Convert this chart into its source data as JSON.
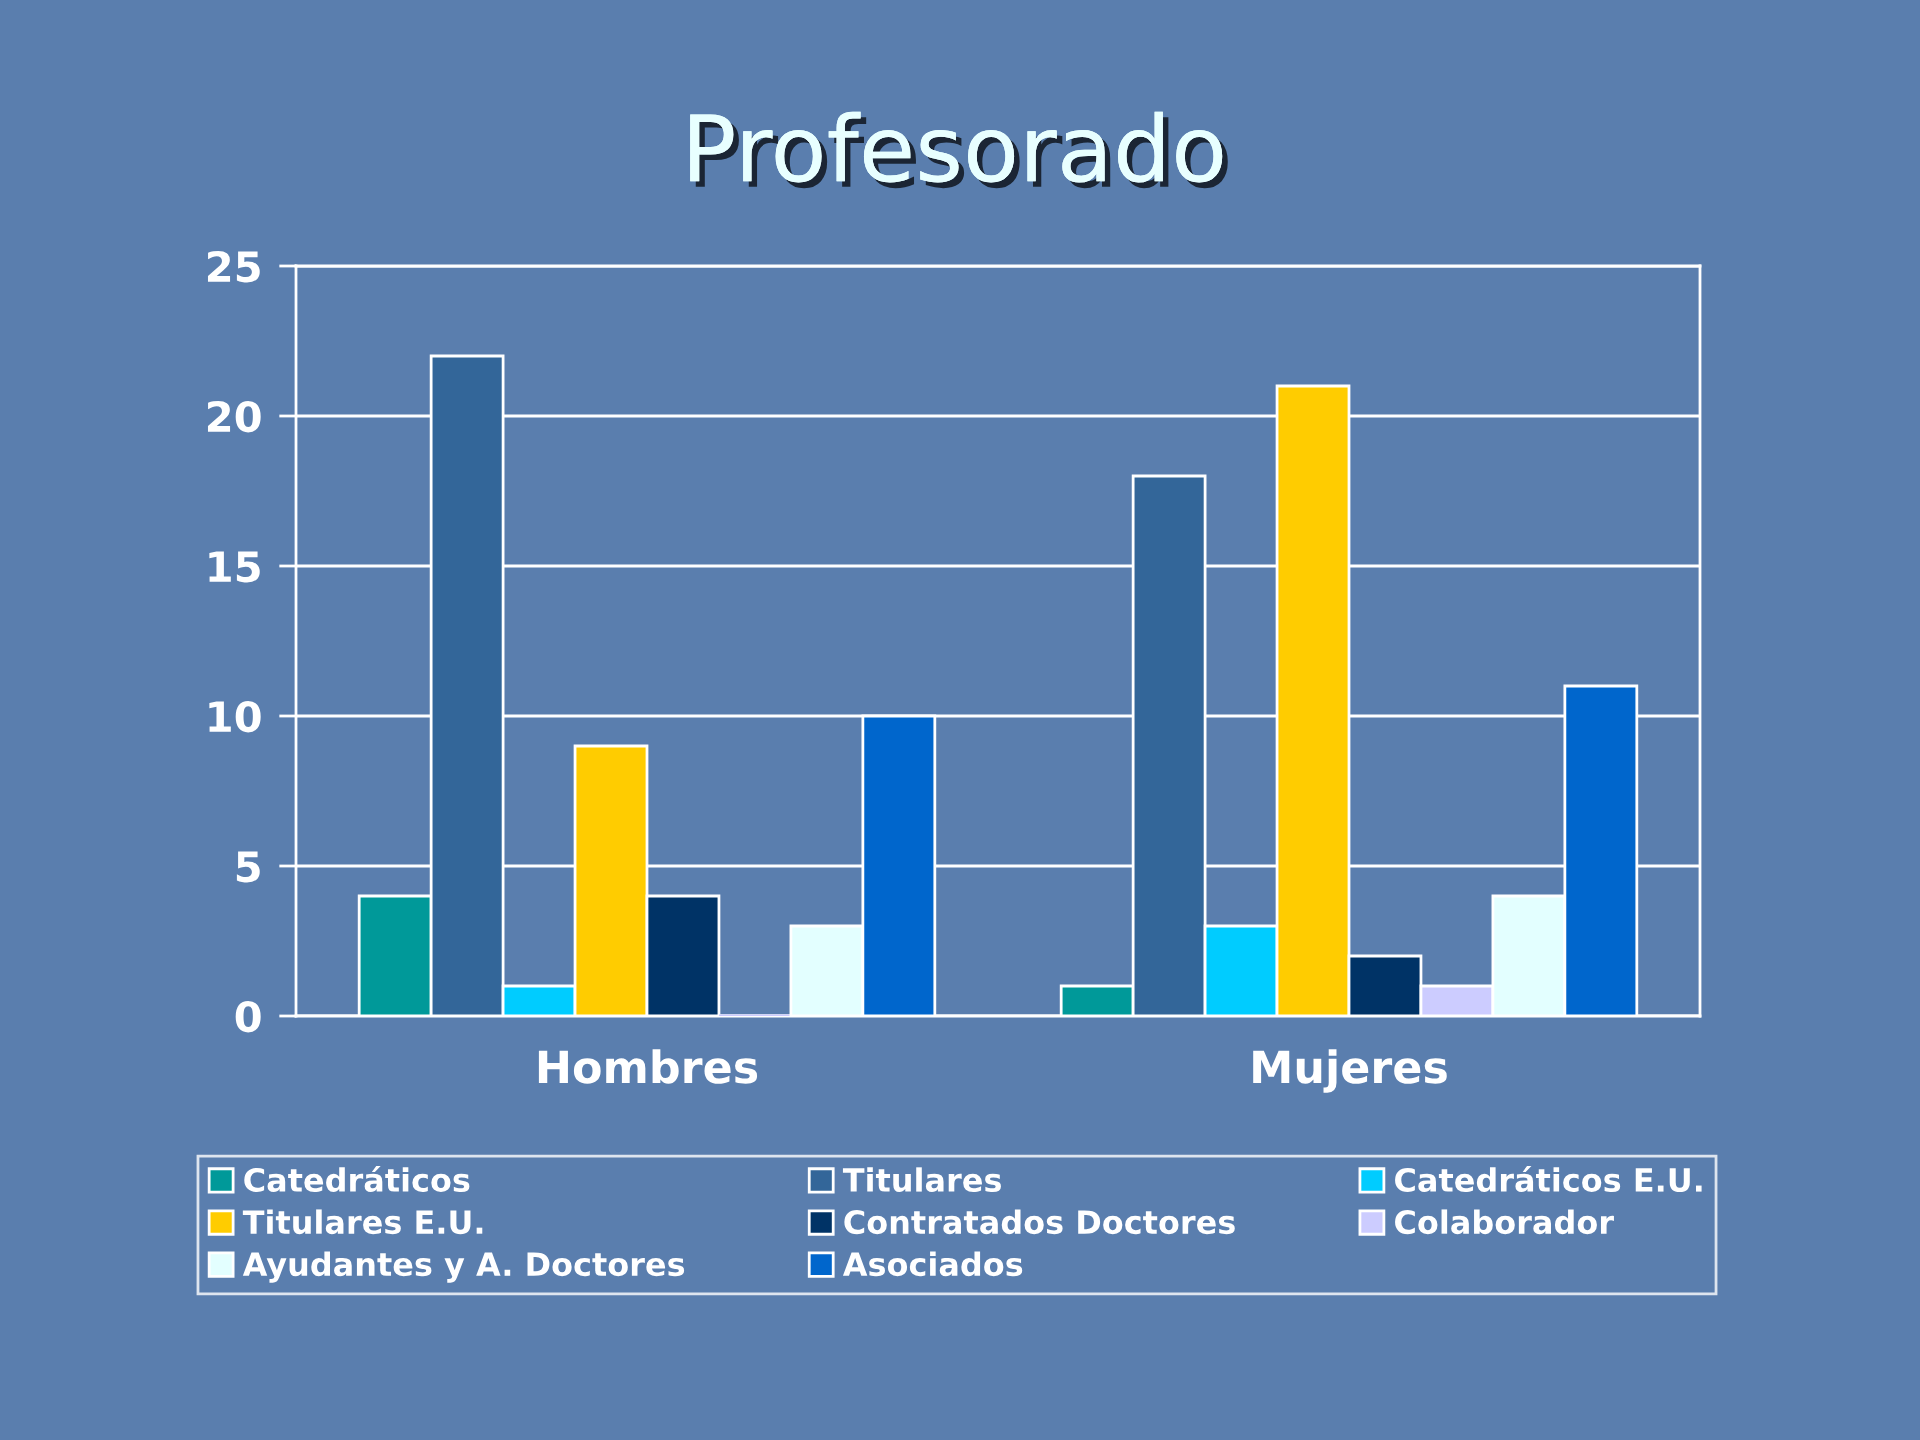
{
  "chart_data": {
    "type": "bar",
    "title": "Profesorado",
    "categories": [
      "Hombres",
      "Mujeres"
    ],
    "series": [
      {
        "name": "Catedráticos",
        "color": "#009999",
        "values": [
          4,
          1
        ]
      },
      {
        "name": "Titulares",
        "color": "#336699",
        "values": [
          22,
          18
        ]
      },
      {
        "name": "Catedráticos E.U.",
        "color": "#00ccff",
        "values": [
          1,
          3
        ]
      },
      {
        "name": "Titulares E.U.",
        "color": "#ffcc00",
        "values": [
          9,
          21
        ]
      },
      {
        "name": "Contratados Doctores",
        "color": "#003366",
        "values": [
          4,
          2
        ]
      },
      {
        "name": "Colaborador",
        "color": "#ccccff",
        "values": [
          0,
          1
        ]
      },
      {
        "name": "Ayudantes y A. Doctores",
        "color": "#e3ffff",
        "values": [
          3,
          4
        ]
      },
      {
        "name": "Asociados",
        "color": "#0066cc",
        "values": [
          10,
          11
        ]
      }
    ],
    "ylim": [
      0,
      25
    ],
    "yticks": [
      0,
      5,
      10,
      15,
      20,
      25
    ],
    "grid": "y",
    "legend": "bottom"
  }
}
